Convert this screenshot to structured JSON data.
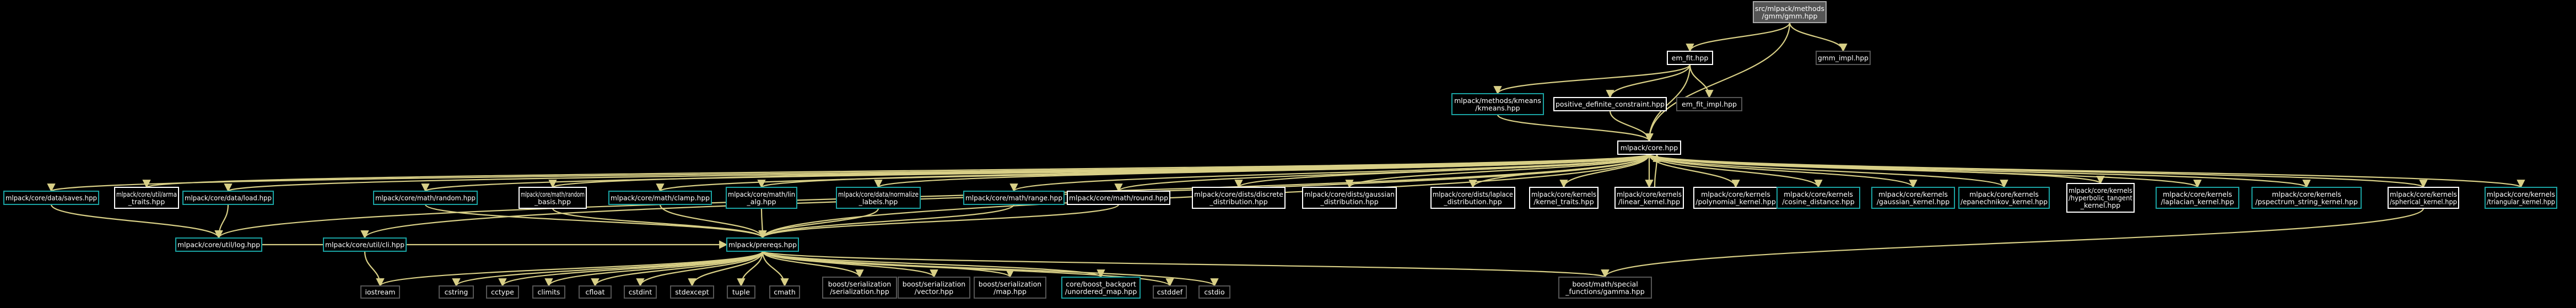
{
  "diagram": {
    "type": "include-dependency-graph",
    "colors": {
      "background": "#000000",
      "edge": "#d8cf86",
      "root_fill": "#555555",
      "root_border": "#aaaaaa",
      "documented_border": "#ffffff",
      "linked_border": "#1aa3a3",
      "external_border": "#555555",
      "text": "#ffffff"
    },
    "nodes": [
      {
        "id": "root",
        "kind": "root",
        "lines": [
          "src/mlpack/methods",
          "/gmm/gmm.hpp"
        ]
      },
      {
        "id": "em_fit",
        "kind": "doc",
        "lines": [
          "em_fit.hpp"
        ]
      },
      {
        "id": "gmm_impl",
        "kind": "ext",
        "lines": [
          "gmm_impl.hpp"
        ]
      },
      {
        "id": "kmeans",
        "kind": "link",
        "lines": [
          "mlpack/methods/kmeans",
          "/kmeans.hpp"
        ]
      },
      {
        "id": "pdc",
        "kind": "doc",
        "lines": [
          "positive_definite_constraint.hpp"
        ]
      },
      {
        "id": "em_fit_impl",
        "kind": "ext",
        "lines": [
          "em_fit_impl.hpp"
        ]
      },
      {
        "id": "core",
        "kind": "doc",
        "lines": [
          "mlpack/core.hpp"
        ]
      },
      {
        "id": "saves",
        "kind": "link",
        "lines": [
          "mlpack/core/data/saves.hpp"
        ]
      },
      {
        "id": "arma_traits",
        "kind": "doc",
        "lines": [
          "mlpack/core/util/arma",
          "_traits.hpp"
        ]
      },
      {
        "id": "load",
        "kind": "link",
        "lines": [
          "mlpack/core/data/load.hpp"
        ]
      },
      {
        "id": "random",
        "kind": "link",
        "lines": [
          "mlpack/core/math/random.hpp"
        ]
      },
      {
        "id": "random_basis",
        "kind": "doc",
        "lines": [
          "mlpack/core/math/random",
          "_basis.hpp"
        ]
      },
      {
        "id": "clamp",
        "kind": "link",
        "lines": [
          "mlpack/core/math/clamp.hpp"
        ]
      },
      {
        "id": "lin_alg",
        "kind": "link",
        "lines": [
          "mlpack/core/math/lin",
          "_alg.hpp"
        ]
      },
      {
        "id": "normalize",
        "kind": "link",
        "lines": [
          "mlpack/core/data/normalize",
          "_labels.hpp"
        ]
      },
      {
        "id": "range",
        "kind": "link",
        "lines": [
          "mlpack/core/math/range.hpp"
        ]
      },
      {
        "id": "round",
        "kind": "doc",
        "lines": [
          "mlpack/core/math/round.hpp"
        ]
      },
      {
        "id": "discrete",
        "kind": "doc",
        "lines": [
          "mlpack/core/dists/discrete",
          "_distribution.hpp"
        ]
      },
      {
        "id": "gaussian_dist",
        "kind": "doc",
        "lines": [
          "mlpack/core/dists/gaussian",
          "_distribution.hpp"
        ]
      },
      {
        "id": "laplace",
        "kind": "doc",
        "lines": [
          "mlpack/core/dists/laplace",
          "_distribution.hpp"
        ]
      },
      {
        "id": "kernel_traits",
        "kind": "doc",
        "lines": [
          "mlpack/core/kernels",
          "/kernel_traits.hpp"
        ]
      },
      {
        "id": "linear",
        "kind": "doc",
        "lines": [
          "mlpack/core/kernels",
          "/linear_kernel.hpp"
        ]
      },
      {
        "id": "polynomial",
        "kind": "doc",
        "lines": [
          "mlpack/core/kernels",
          "/polynomial_kernel.hpp"
        ]
      },
      {
        "id": "cosine",
        "kind": "link",
        "lines": [
          "mlpack/core/kernels",
          "/cosine_distance.hpp"
        ]
      },
      {
        "id": "gaussian_kernel",
        "kind": "link",
        "lines": [
          "mlpack/core/kernels",
          "/gaussian_kernel.hpp"
        ]
      },
      {
        "id": "epanechnikov",
        "kind": "link",
        "lines": [
          "mlpack/core/kernels",
          "/epanechnikov_kernel.hpp"
        ]
      },
      {
        "id": "hyperbolic",
        "kind": "doc",
        "lines": [
          "mlpack/core/kernels",
          "/hyperbolic_tangent",
          "_kernel.hpp"
        ]
      },
      {
        "id": "laplacian",
        "kind": "link",
        "lines": [
          "mlpack/core/kernels",
          "/laplacian_kernel.hpp"
        ]
      },
      {
        "id": "pspectrum",
        "kind": "link",
        "lines": [
          "mlpack/core/kernels",
          "/pspectrum_string_kernel.hpp"
        ]
      },
      {
        "id": "spherical",
        "kind": "doc",
        "lines": [
          "mlpack/core/kernels",
          "/spherical_kernel.hpp"
        ]
      },
      {
        "id": "triangular",
        "kind": "link",
        "lines": [
          "mlpack/core/kernels",
          "/triangular_kernel.hpp"
        ]
      },
      {
        "id": "log",
        "kind": "link",
        "lines": [
          "mlpack/core/util/log.hpp"
        ]
      },
      {
        "id": "cli",
        "kind": "link",
        "lines": [
          "mlpack/core/util/cli.hpp"
        ]
      },
      {
        "id": "prereqs",
        "kind": "link",
        "lines": [
          "mlpack/prereqs.hpp"
        ]
      },
      {
        "id": "iostream",
        "kind": "ext",
        "lines": [
          "iostream"
        ]
      },
      {
        "id": "cstring",
        "kind": "ext",
        "lines": [
          "cstring"
        ]
      },
      {
        "id": "cctype",
        "kind": "ext",
        "lines": [
          "cctype"
        ]
      },
      {
        "id": "climits",
        "kind": "ext",
        "lines": [
          "climits"
        ]
      },
      {
        "id": "cfloat",
        "kind": "ext",
        "lines": [
          "cfloat"
        ]
      },
      {
        "id": "cstdint",
        "kind": "ext",
        "lines": [
          "cstdint"
        ]
      },
      {
        "id": "stdexcept",
        "kind": "ext",
        "lines": [
          "stdexcept"
        ]
      },
      {
        "id": "tuple",
        "kind": "ext",
        "lines": [
          "tuple"
        ]
      },
      {
        "id": "cmath",
        "kind": "ext",
        "lines": [
          "cmath"
        ]
      },
      {
        "id": "ser_ser",
        "kind": "ext",
        "lines": [
          "boost/serialization",
          "/serialization.hpp"
        ]
      },
      {
        "id": "ser_vector",
        "kind": "ext",
        "lines": [
          "boost/serialization",
          "/vector.hpp"
        ]
      },
      {
        "id": "ser_map",
        "kind": "ext",
        "lines": [
          "boost/serialization",
          "/map.hpp"
        ]
      },
      {
        "id": "unordered",
        "kind": "link",
        "lines": [
          "core/boost_backport",
          "/unordered_map.hpp"
        ]
      },
      {
        "id": "cstddef",
        "kind": "ext",
        "lines": [
          "cstddef"
        ]
      },
      {
        "id": "cstdio",
        "kind": "ext",
        "lines": [
          "cstdio"
        ]
      },
      {
        "id": "gamma",
        "kind": "ext",
        "lines": [
          "boost/math/special",
          "_functions/gamma.hpp"
        ]
      }
    ],
    "edges": [
      [
        "root",
        "em_fit"
      ],
      [
        "root",
        "gmm_impl"
      ],
      [
        "root",
        "core"
      ],
      [
        "em_fit",
        "kmeans"
      ],
      [
        "em_fit",
        "pdc"
      ],
      [
        "em_fit",
        "em_fit_impl"
      ],
      [
        "em_fit",
        "core"
      ],
      [
        "kmeans",
        "core"
      ],
      [
        "pdc",
        "core"
      ],
      [
        "core",
        "saves"
      ],
      [
        "core",
        "arma_traits"
      ],
      [
        "core",
        "load"
      ],
      [
        "core",
        "random"
      ],
      [
        "core",
        "random_basis"
      ],
      [
        "core",
        "clamp"
      ],
      [
        "core",
        "lin_alg"
      ],
      [
        "core",
        "normalize"
      ],
      [
        "core",
        "range"
      ],
      [
        "core",
        "round"
      ],
      [
        "core",
        "discrete"
      ],
      [
        "core",
        "gaussian_dist"
      ],
      [
        "core",
        "laplace"
      ],
      [
        "core",
        "kernel_traits"
      ],
      [
        "core",
        "linear"
      ],
      [
        "core",
        "polynomial"
      ],
      [
        "core",
        "cosine"
      ],
      [
        "core",
        "gaussian_kernel"
      ],
      [
        "core",
        "epanechnikov"
      ],
      [
        "core",
        "hyperbolic"
      ],
      [
        "core",
        "laplacian"
      ],
      [
        "core",
        "pspectrum"
      ],
      [
        "core",
        "spherical"
      ],
      [
        "core",
        "triangular"
      ],
      [
        "core",
        "log"
      ],
      [
        "core",
        "cli"
      ],
      [
        "core",
        "prereqs"
      ],
      [
        "linear",
        "core"
      ],
      [
        "saves",
        "log"
      ],
      [
        "load",
        "log"
      ],
      [
        "random",
        "prereqs"
      ],
      [
        "random_basis",
        "prereqs"
      ],
      [
        "clamp",
        "prereqs"
      ],
      [
        "lin_alg",
        "prereqs"
      ],
      [
        "normalize",
        "prereqs"
      ],
      [
        "range",
        "prereqs"
      ],
      [
        "round",
        "prereqs"
      ],
      [
        "cli",
        "iostream"
      ],
      [
        "log",
        "prereqs"
      ],
      [
        "prereqs",
        "iostream"
      ],
      [
        "prereqs",
        "cstring"
      ],
      [
        "prereqs",
        "cctype"
      ],
      [
        "prereqs",
        "climits"
      ],
      [
        "prereqs",
        "cfloat"
      ],
      [
        "prereqs",
        "cstdint"
      ],
      [
        "prereqs",
        "stdexcept"
      ],
      [
        "prereqs",
        "tuple"
      ],
      [
        "prereqs",
        "cmath"
      ],
      [
        "prereqs",
        "ser_ser"
      ],
      [
        "prereqs",
        "ser_vector"
      ],
      [
        "prereqs",
        "ser_map"
      ],
      [
        "prereqs",
        "unordered"
      ],
      [
        "prereqs",
        "cstddef"
      ],
      [
        "prereqs",
        "cstdio"
      ],
      [
        "prereqs",
        "gamma"
      ],
      [
        "spherical",
        "gamma"
      ]
    ]
  }
}
